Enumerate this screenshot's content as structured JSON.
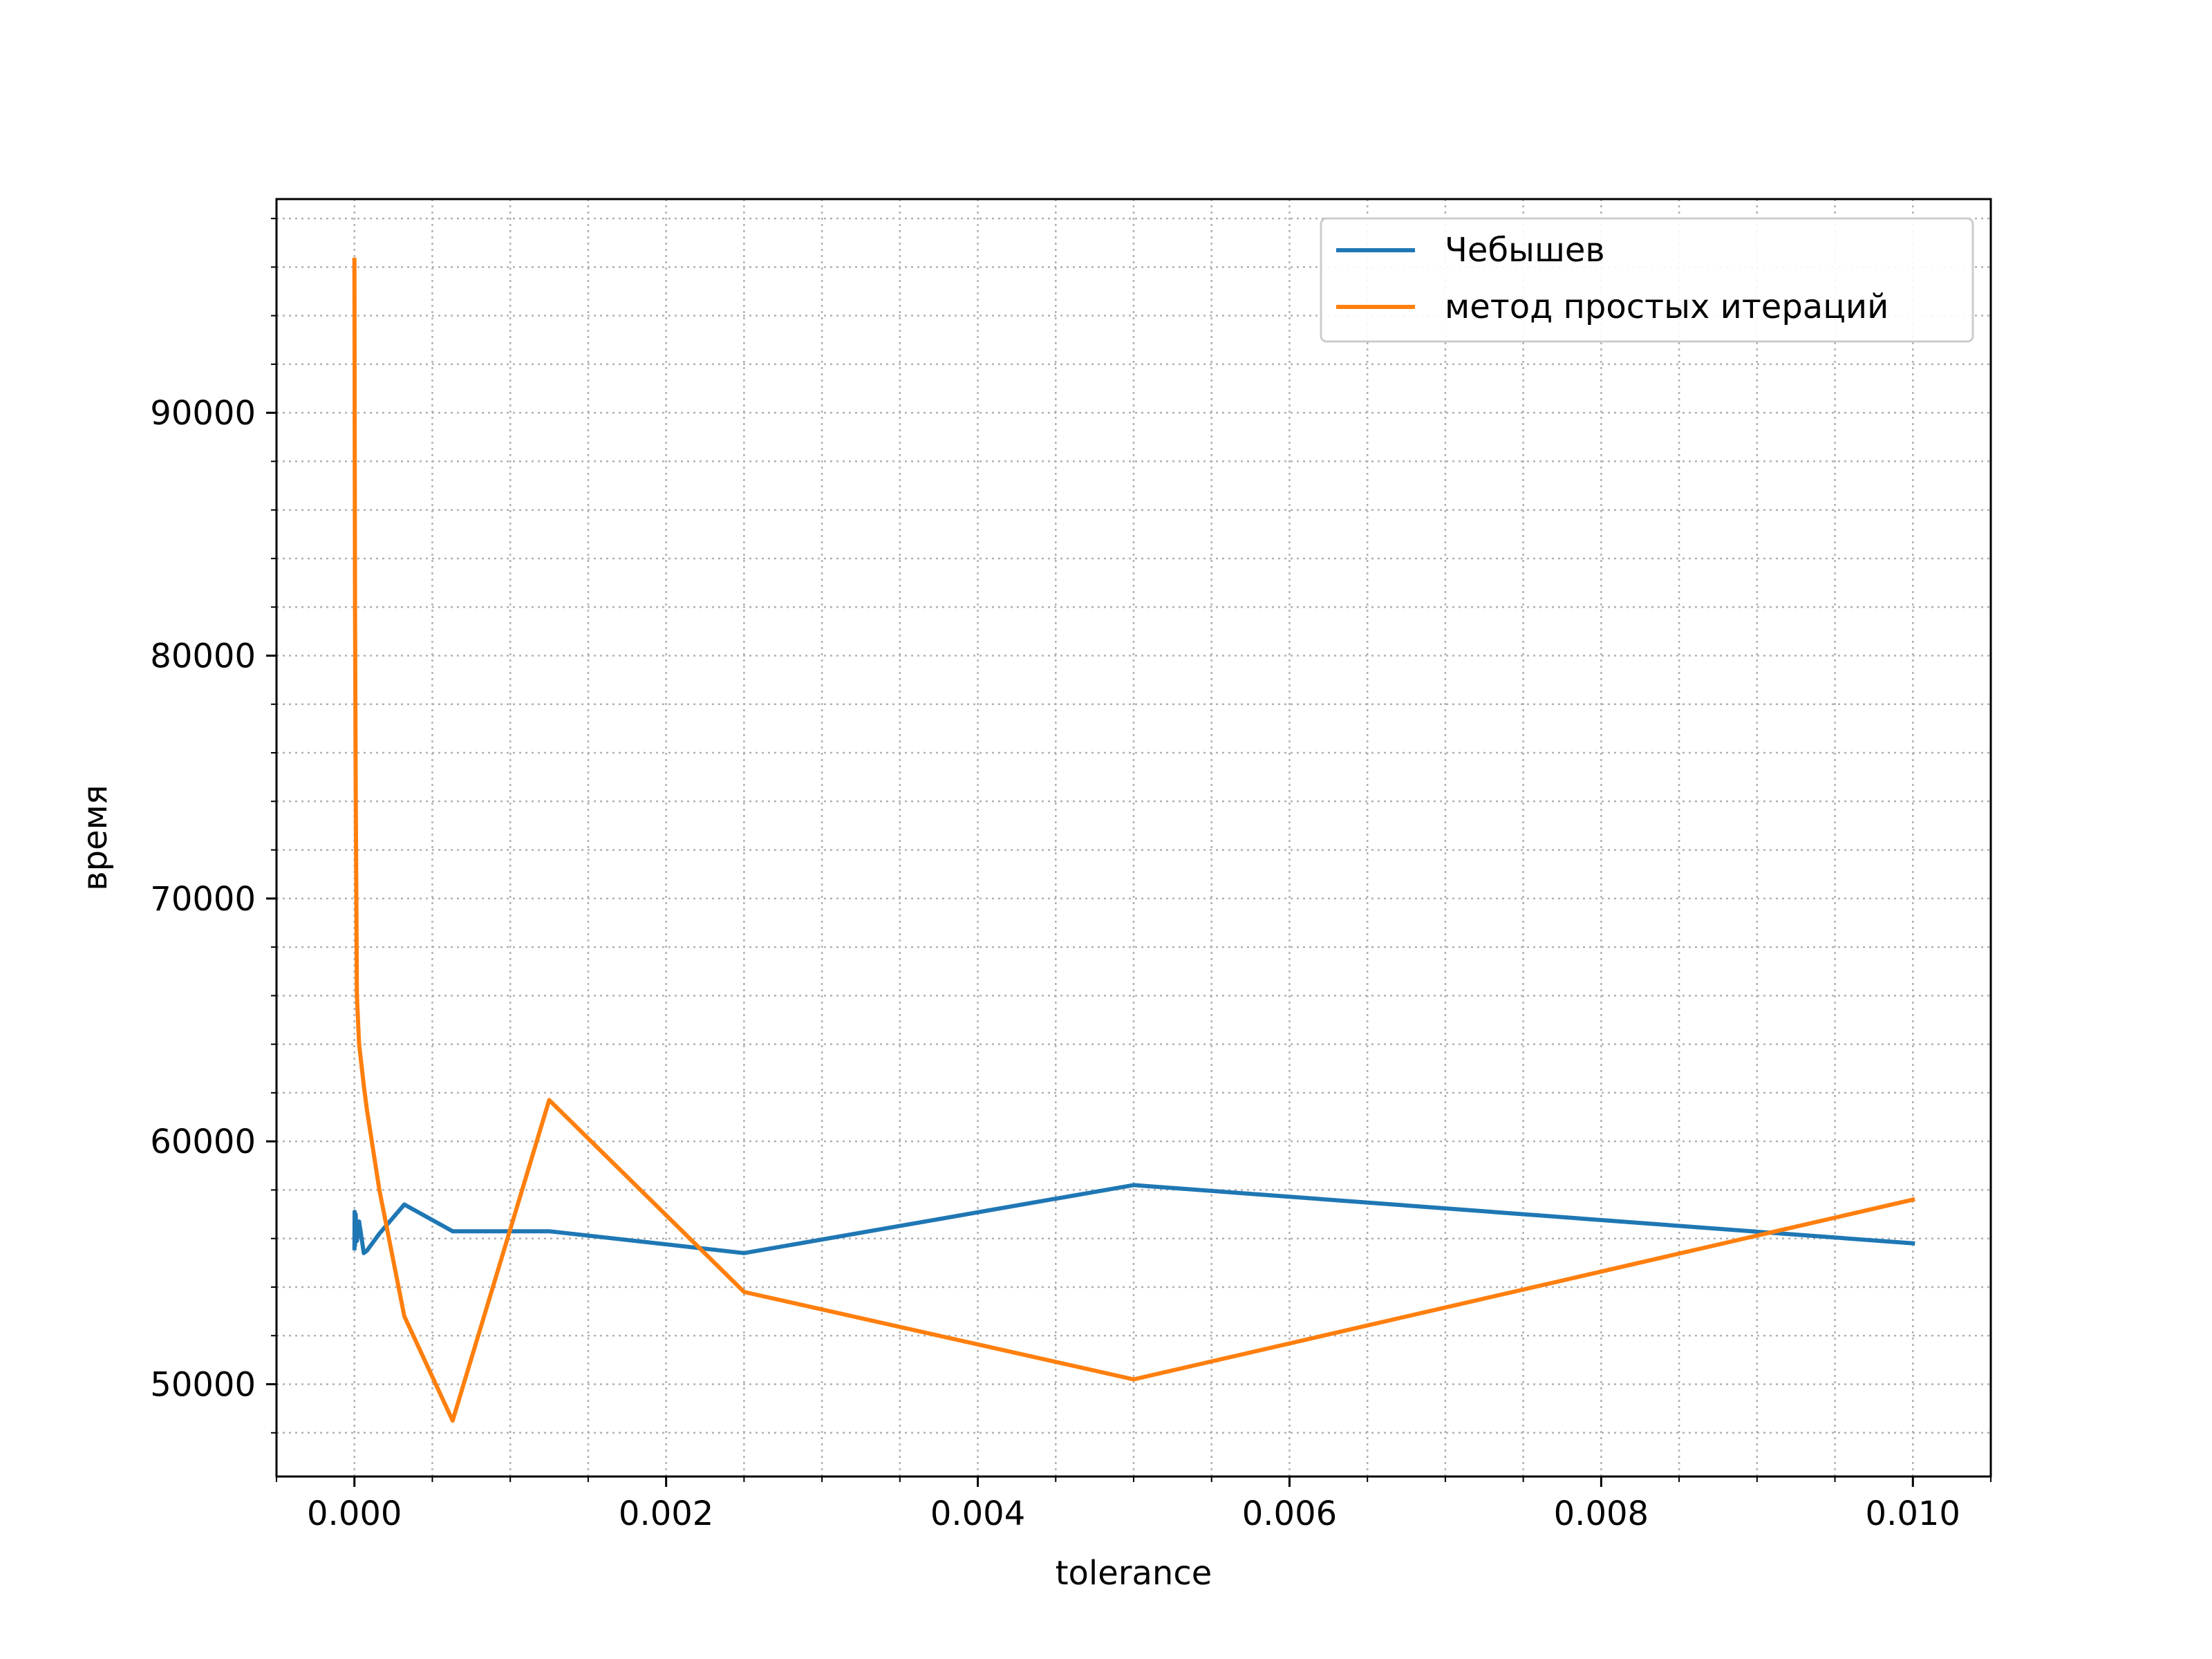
{
  "chart_data": {
    "type": "line",
    "xlabel": "tolerance",
    "ylabel": "время",
    "xlim": [
      -0.0005,
      0.0105
    ],
    "ylim": [
      46200,
      98800
    ],
    "xticks": [
      0.0,
      0.002,
      0.004,
      0.006,
      0.008,
      0.01
    ],
    "xtick_labels": [
      "0.000",
      "0.002",
      "0.004",
      "0.006",
      "0.008",
      "0.010"
    ],
    "yticks": [
      50000,
      60000,
      70000,
      80000,
      90000
    ],
    "ytick_labels": [
      "50000",
      "60000",
      "70000",
      "80000",
      "90000"
    ],
    "grid": true,
    "legend_position": "top-right",
    "series": [
      {
        "name": "Чебышев",
        "color": "#1f77b4",
        "x": [
          5e-07,
          1e-06,
          2e-06,
          4e-06,
          8e-06,
          1.6e-05,
          3e-05,
          6e-05,
          8e-05,
          0.00016,
          0.00032,
          0.00063,
          0.00125,
          0.0025,
          0.005,
          0.01
        ],
        "y": [
          55600,
          57100,
          56000,
          55700,
          57000,
          55900,
          56700,
          55400,
          55500,
          56200,
          57400,
          56300,
          56300,
          55400,
          58200,
          55800
        ]
      },
      {
        "name": "метод простых итераций",
        "color": "#ff7f0e",
        "x": [
          1e-07,
          3e-07,
          1e-06,
          2e-06,
          4e-06,
          8e-06,
          1.6e-05,
          3e-05,
          6e-05,
          8e-05,
          0.00016,
          0.00032,
          0.00063,
          0.00125,
          0.0025,
          0.005,
          0.01
        ],
        "y": [
          96300,
          95000,
          92000,
          88000,
          82000,
          75000,
          66000,
          64000,
          62300,
          61300,
          58000,
          52800,
          48500,
          61700,
          53800,
          50200,
          57600
        ]
      }
    ]
  }
}
